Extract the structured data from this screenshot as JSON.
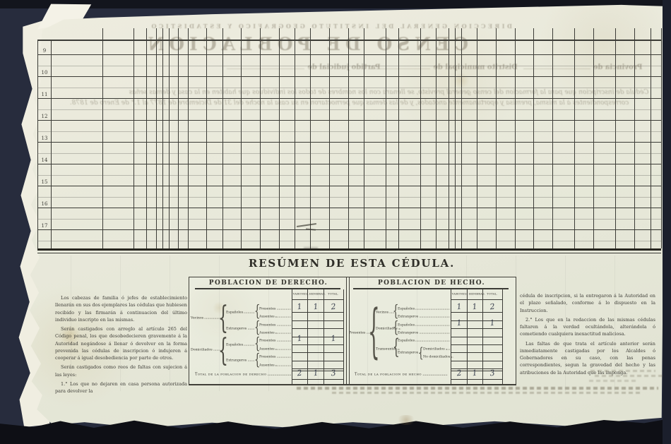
{
  "colors": {
    "background": "#272c3d",
    "paper": "#e8e8da",
    "ink": "#3b3b36",
    "handwriting": "#3d4351"
  },
  "bleedthrough": {
    "institute_line": "DIRECCION GENERAL DEL INSTITUTO GEOGRAFICO Y ESTADISTICO",
    "census_title": "CENSO DE POBLACION",
    "provincia_label": "Provincia de",
    "partido_label": "Partido judicial de",
    "distrito_label": "Distrito municipal de",
    "cedula_line_1": "Cédula de inscripcion que para la formacion del censo general previsto, se llenará con los nombres de todos los individuos que habiten en la casa y demas señas",
    "cedula_line_2": "correspondientes á la misma, premisa y oportunamente anotados, y de las demas que pernoctaron en su casa la noche del 31 de Diciembre de 1877 al 1.° de Enero de 1878."
  },
  "grid": {
    "row_numbers": [
      "9",
      "10",
      "11",
      "12",
      "13",
      "14",
      "15",
      "16",
      "17"
    ]
  },
  "summary": {
    "title": "RESÚMEN DE ESTA CÉDULA.",
    "left_notes": [
      "Los cabezas de familia ó jefes de establecimiento llenarán en sus dos ejemplares las cédulas que hubiesen recibido y las firmarán á continuacion del último individuo inscripto en las mismas.",
      "Serán castigados con arreglo al artículo 265 del Código penal, los que desobedecieren gravemente á la Autoridad negándose á llenar ó devolver en la forma prevenida las cédulas de inscripcion ó indujeren á cooperar á igual desobediencia por parte de otros.",
      "Serán castigados como reos de faltas con sujecion á las leyes:",
      "1.°  Los que no dejaren en casa persona autorizada para devolver la"
    ],
    "right_notes": [
      "cédula de inscripcion, si la entregaron á la Autoridad en el plazo señalado, conforme á lo dispuesto en la Instruccion.",
      "2.°  Los que en la redaccion de las mismas cédulas faltaren á la verdad ocultándola, alterándola ó cometiendo cualquiera inexactitud maliciosa.",
      "Las faltas de que trata el artículo anterior serán inmediatamente castigadas por los Alcaldes ó Gobernadores en su caso, con las penas correspondientes, segun la gravedad del hecho y las atribuciones de la Autoridad que las imponga."
    ],
    "col_headers": [
      "VARONES.",
      "HEMBRAS.",
      "TOTAL."
    ],
    "derecho": {
      "title": "POBLACION DE DERECHO.",
      "group1": "Vecinos",
      "group2": "Domiciliados",
      "sub_esp": "Españoles",
      "sub_ext": "Extrangeros",
      "item_pres": "Presentes",
      "item_aus": "Ausentes",
      "rows": [
        [
          "1",
          "1",
          "2"
        ],
        [
          "",
          "",
          ""
        ],
        [
          "",
          "",
          ""
        ],
        [
          "",
          "",
          ""
        ],
        [
          "1",
          "",
          "1"
        ],
        [
          "",
          "",
          ""
        ],
        [
          "",
          "",
          ""
        ],
        [
          "",
          "",
          ""
        ]
      ],
      "total_label": "Total de la poblacion de derecho",
      "totals": [
        "2",
        "1",
        "3"
      ]
    },
    "hecho": {
      "title": "POBLACION DE HECHO.",
      "group": "Presentes",
      "sub1": "Vecinos",
      "sub2": "Domiciliados",
      "sub3": "Transeuntes",
      "esp": "Españoles",
      "ext": "Extrangeros",
      "nested_dom": "Domiciliados",
      "nested_nodom": "No domiciliados",
      "rows": [
        [
          "1",
          "1",
          "2"
        ],
        [
          "",
          "",
          ""
        ],
        [
          "1",
          "",
          "1"
        ],
        [
          "",
          "",
          ""
        ],
        [
          "",
          "",
          ""
        ],
        [
          "",
          "",
          ""
        ],
        [
          "",
          "",
          ""
        ],
        [
          "",
          "",
          ""
        ]
      ],
      "total_label": "Total de la poblacion de hecho",
      "totals": [
        "2",
        "1",
        "3"
      ]
    }
  }
}
